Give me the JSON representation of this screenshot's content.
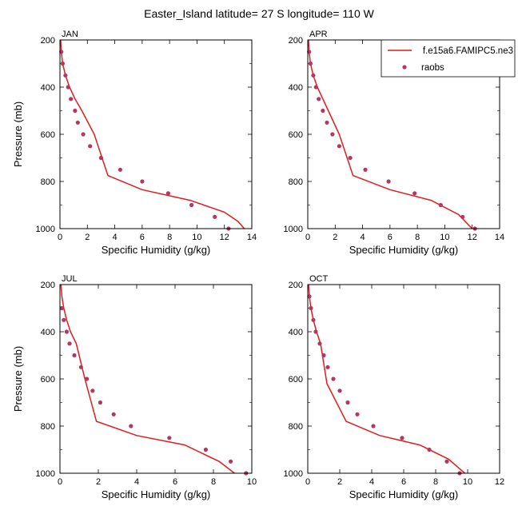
{
  "title": "Easter_Island  latitude= 27 S longitude= 110 W",
  "colors": {
    "model": "#e41a1c",
    "obs": "#b5365f",
    "axis": "#000000"
  },
  "legend": {
    "model_label": "f.e15a6.FAMIPC5.ne3",
    "obs_label": "raobs"
  },
  "chart_data": [
    {
      "type": "line",
      "panel": "JAN",
      "xlabel": "Specific Humidity (g/kg)",
      "ylabel": "Pressure (mb)",
      "xlim": [
        0,
        14
      ],
      "xticks": [
        0,
        2,
        4,
        6,
        8,
        10,
        12,
        14
      ],
      "ylim": [
        1000,
        200
      ],
      "yticks": [
        200,
        400,
        600,
        800,
        1000
      ],
      "model": {
        "name": "f.e15a6.FAMIPC5.ne3",
        "x": [
          0.05,
          0.1,
          0.2,
          0.4,
          0.7,
          1.1,
          1.6,
          2.5,
          3.5,
          6.0,
          9.5,
          12.0,
          13.0,
          13.6
        ],
        "y": [
          200,
          250,
          300,
          350,
          400,
          450,
          500,
          600,
          775,
          835,
          880,
          930,
          970,
          1010
        ]
      },
      "obs": {
        "name": "raobs",
        "x": [
          0.1,
          0.2,
          0.4,
          0.6,
          0.8,
          1.1,
          1.3,
          1.7,
          2.2,
          3.0,
          4.4,
          6.0,
          7.9,
          9.6,
          11.3,
          12.3
        ],
        "y": [
          250,
          300,
          350,
          400,
          450,
          500,
          550,
          600,
          650,
          700,
          750,
          800,
          850,
          900,
          950,
          1000
        ]
      }
    },
    {
      "type": "line",
      "panel": "APR",
      "xlabel": "Specific Humidity (g/kg)",
      "ylabel": "",
      "xlim": [
        0,
        14
      ],
      "xticks": [
        0,
        2,
        4,
        6,
        8,
        10,
        12,
        14
      ],
      "ylim": [
        1000,
        200
      ],
      "yticks": [
        200,
        400,
        600,
        800,
        1000
      ],
      "model": {
        "name": "f.e15a6.FAMIPC5.ne3",
        "x": [
          0.05,
          0.1,
          0.2,
          0.4,
          0.7,
          1.1,
          1.5,
          2.3,
          3.3,
          6.0,
          9.0,
          11.0,
          12.0
        ],
        "y": [
          200,
          250,
          300,
          350,
          400,
          450,
          500,
          600,
          775,
          835,
          880,
          940,
          1000
        ]
      },
      "obs": {
        "name": "raobs",
        "x": [
          0.1,
          0.2,
          0.4,
          0.6,
          0.8,
          1.1,
          1.4,
          1.8,
          2.3,
          3.1,
          4.2,
          5.9,
          7.8,
          9.7,
          11.3,
          12.2
        ],
        "y": [
          250,
          300,
          350,
          400,
          450,
          500,
          550,
          600,
          650,
          700,
          750,
          800,
          850,
          900,
          950,
          1000
        ]
      }
    },
    {
      "type": "line",
      "panel": "JUL",
      "xlabel": "Specific Humidity (g/kg)",
      "ylabel": "Pressure (mb)",
      "xlim": [
        0,
        10
      ],
      "xticks": [
        0,
        2,
        4,
        6,
        8,
        10
      ],
      "ylim": [
        1000,
        200
      ],
      "yticks": [
        200,
        400,
        600,
        800,
        1000
      ],
      "model": {
        "name": "f.e15a6.FAMIPC5.ne3",
        "x": [
          0.05,
          0.1,
          0.2,
          0.35,
          0.55,
          0.85,
          1.3,
          1.9,
          4.0,
          6.5,
          8.3,
          9.1
        ],
        "y": [
          200,
          250,
          300,
          350,
          400,
          450,
          600,
          780,
          840,
          880,
          950,
          1000
        ]
      },
      "obs": {
        "name": "raobs",
        "x": [
          0.1,
          0.2,
          0.35,
          0.5,
          0.75,
          1.1,
          1.4,
          1.7,
          2.1,
          2.8,
          3.7,
          5.7,
          7.6,
          8.9,
          9.7
        ],
        "y": [
          300,
          350,
          400,
          450,
          500,
          550,
          600,
          650,
          700,
          750,
          800,
          850,
          900,
          950,
          1000
        ]
      }
    },
    {
      "type": "line",
      "panel": "OCT",
      "xlabel": "Specific Humidity (g/kg)",
      "ylabel": "",
      "xlim": [
        0,
        12
      ],
      "xticks": [
        0,
        2,
        4,
        6,
        8,
        10,
        12
      ],
      "ylim": [
        1000,
        200
      ],
      "yticks": [
        200,
        400,
        600,
        800,
        1000
      ],
      "model": {
        "name": "f.e15a6.FAMIPC5.ne3",
        "x": [
          0.05,
          0.1,
          0.2,
          0.35,
          0.55,
          0.8,
          1.2,
          2.4,
          4.5,
          7.0,
          8.8,
          10.0
        ],
        "y": [
          200,
          250,
          300,
          350,
          400,
          450,
          620,
          780,
          840,
          880,
          940,
          1010
        ]
      },
      "obs": {
        "name": "raobs",
        "x": [
          0.1,
          0.2,
          0.35,
          0.5,
          0.75,
          1.0,
          1.25,
          1.6,
          2.0,
          2.5,
          3.1,
          4.1,
          5.9,
          7.6,
          8.7,
          9.5
        ],
        "y": [
          250,
          300,
          350,
          400,
          450,
          500,
          550,
          600,
          650,
          700,
          750,
          800,
          850,
          900,
          950,
          1000
        ]
      }
    }
  ]
}
